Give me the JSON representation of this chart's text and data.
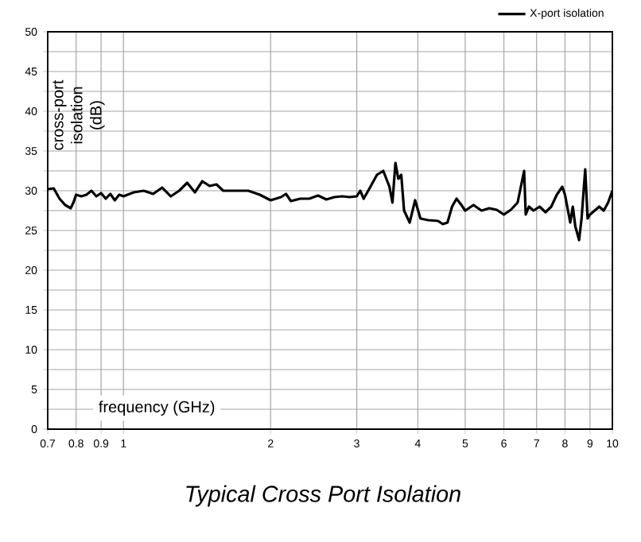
{
  "chart_data": {
    "type": "line",
    "title": "Typical Cross Port Isolation",
    "xlabel": "frequency (GHz)",
    "ylabel": "cross-port isolation (dB)",
    "log": "x",
    "grid": true,
    "legend": "top right",
    "marker": "none",
    "line_style": "solid",
    "xlim": [
      0.7,
      10
    ],
    "xticks": [
      0.7,
      0.8,
      0.9,
      1,
      2,
      3,
      4,
      5,
      6,
      7,
      8,
      9,
      10
    ],
    "ylim": [
      0,
      50
    ],
    "yticks": [
      0,
      {
        "value": 2.5,
        "label": null
      },
      5,
      {
        "value": 7.5,
        "label": null
      },
      10,
      {
        "value": 12.5,
        "label": null
      },
      15,
      {
        "value": 17.5,
        "label": null
      },
      20,
      {
        "value": 22.5,
        "label": null
      },
      25,
      {
        "value": 27.5,
        "label": null
      },
      30,
      {
        "value": 32.5,
        "label": null
      },
      35,
      {
        "value": 37.5,
        "label": null
      },
      40,
      {
        "value": 42.5,
        "label": null
      },
      45,
      {
        "value": 47.5,
        "label": null
      },
      50
    ],
    "x": [
      0.7,
      0.72,
      0.74,
      0.76,
      0.78,
      0.79,
      0.8,
      0.82,
      0.84,
      0.86,
      0.88,
      0.9,
      0.92,
      0.94,
      0.96,
      0.98,
      1.0,
      1.05,
      1.1,
      1.15,
      1.2,
      1.25,
      1.3,
      1.35,
      1.4,
      1.45,
      1.5,
      1.55,
      1.6,
      1.7,
      1.8,
      1.9,
      2.0,
      2.1,
      2.15,
      2.2,
      2.3,
      2.4,
      2.5,
      2.6,
      2.7,
      2.8,
      2.9,
      3.0,
      3.05,
      3.1,
      3.2,
      3.3,
      3.4,
      3.5,
      3.55,
      3.6,
      3.65,
      3.7,
      3.75,
      3.85,
      3.95,
      4.05,
      4.2,
      4.4,
      4.5,
      4.6,
      4.7,
      4.8,
      4.9,
      5.0,
      5.2,
      5.4,
      5.6,
      5.8,
      6.0,
      6.2,
      6.4,
      6.6,
      6.65,
      6.75,
      6.9,
      7.1,
      7.3,
      7.5,
      7.7,
      7.9,
      8.0,
      8.2,
      8.3,
      8.4,
      8.55,
      8.65,
      8.8,
      8.9,
      9.0,
      9.2,
      9.4,
      9.6,
      9.8,
      10.0
    ],
    "series": [
      {
        "name": "X-port isolation",
        "color": "#000000",
        "values": [
          30.2,
          30.3,
          29.0,
          28.2,
          27.8,
          28.5,
          29.5,
          29.3,
          29.5,
          30.0,
          29.3,
          29.7,
          29.0,
          29.6,
          28.8,
          29.5,
          29.3,
          29.8,
          30.0,
          29.6,
          30.4,
          29.3,
          30.0,
          31.0,
          29.8,
          31.2,
          30.6,
          30.8,
          30.0,
          30.0,
          30.0,
          29.5,
          28.8,
          29.2,
          29.6,
          28.7,
          29.0,
          29.0,
          29.4,
          28.9,
          29.2,
          29.3,
          29.2,
          29.3,
          30.0,
          29.0,
          30.5,
          32.0,
          32.5,
          30.5,
          28.5,
          33.5,
          31.5,
          32.0,
          27.5,
          26.0,
          28.8,
          26.5,
          26.3,
          26.2,
          25.8,
          26.0,
          28.0,
          29.0,
          28.3,
          27.5,
          28.2,
          27.5,
          27.8,
          27.6,
          27.0,
          27.6,
          28.5,
          32.5,
          27.0,
          28.0,
          27.5,
          28.0,
          27.3,
          28.0,
          29.5,
          30.5,
          29.5,
          26.0,
          28.0,
          25.5,
          23.8,
          26.5,
          32.7,
          26.5,
          27.0,
          27.5,
          28.0,
          27.5,
          28.5,
          30.0
        ]
      }
    ]
  }
}
